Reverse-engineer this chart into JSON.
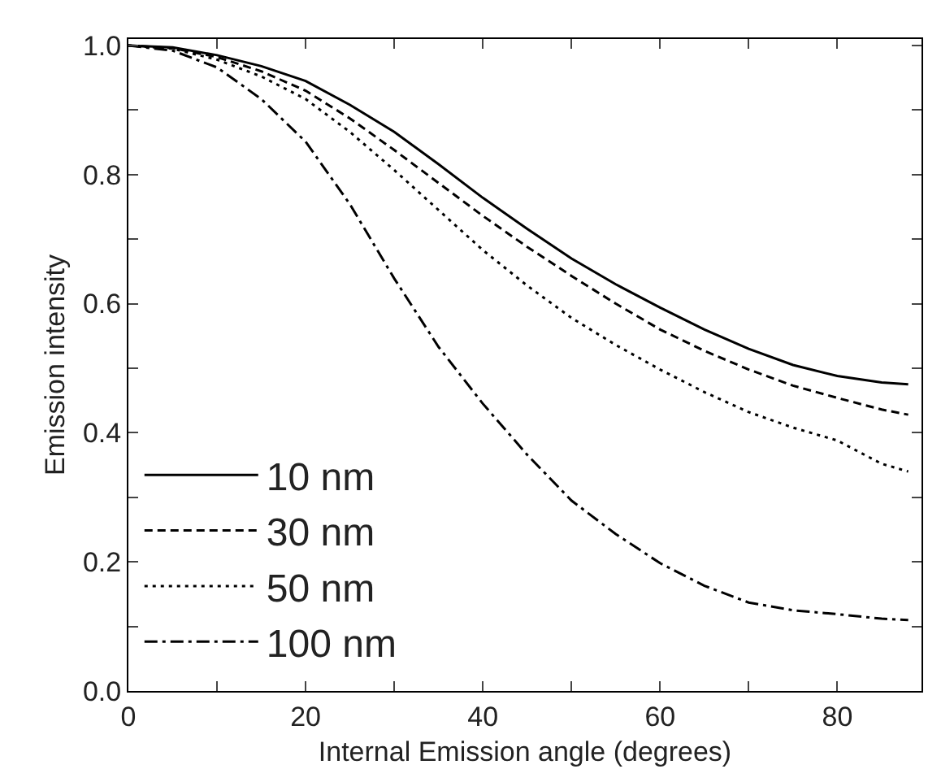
{
  "chart_data": {
    "type": "line",
    "xlabel": "Internal Emission angle (degrees)",
    "ylabel": "Emission intensity",
    "x": [
      0,
      5,
      10,
      15,
      20,
      25,
      30,
      35,
      40,
      45,
      50,
      55,
      60,
      65,
      70,
      75,
      80,
      85,
      88
    ],
    "series": [
      {
        "name": "10 nm",
        "color": "#000000",
        "line_style": "solid",
        "values": [
          1,
          0.997,
          0.985,
          0.968,
          0.945,
          0.908,
          0.866,
          0.816,
          0.764,
          0.716,
          0.67,
          0.63,
          0.594,
          0.56,
          0.53,
          0.505,
          0.488,
          0.478,
          0.475
        ]
      },
      {
        "name": "30 nm",
        "color": "#000000",
        "line_style": "dashed",
        "values": [
          1,
          0.996,
          0.982,
          0.96,
          0.93,
          0.887,
          0.838,
          0.787,
          0.736,
          0.688,
          0.643,
          0.6,
          0.56,
          0.527,
          0.498,
          0.473,
          0.454,
          0.436,
          0.428
        ]
      },
      {
        "name": "50 nm",
        "color": "#000000",
        "line_style": "dotted",
        "values": [
          1,
          0.995,
          0.978,
          0.952,
          0.917,
          0.866,
          0.807,
          0.745,
          0.683,
          0.628,
          0.578,
          0.536,
          0.498,
          0.463,
          0.432,
          0.408,
          0.388,
          0.352,
          0.34
        ]
      },
      {
        "name": "100 nm",
        "color": "#000000",
        "line_style": "dashdot",
        "values": [
          1,
          0.992,
          0.966,
          0.917,
          0.851,
          0.754,
          0.639,
          0.533,
          0.445,
          0.366,
          0.295,
          0.243,
          0.198,
          0.163,
          0.137,
          0.125,
          0.119,
          0.112,
          0.11
        ]
      }
    ],
    "xlim": [
      0,
      89.5
    ],
    "xticks": [
      0,
      {
        "value": 10,
        "label": null
      },
      20,
      {
        "value": 30,
        "label": null
      },
      40,
      {
        "value": 50,
        "label": null
      },
      60,
      {
        "value": 70,
        "label": null
      },
      80
    ],
    "ylim": [
      0,
      1.01
    ],
    "yticks": [
      {
        "value": 0,
        "label": "0.0"
      },
      {
        "value": 0.1,
        "label": null
      },
      {
        "value": 0.2,
        "label": "0.2"
      },
      {
        "value": 0.3,
        "label": null
      },
      {
        "value": 0.4,
        "label": "0.4"
      },
      {
        "value": 0.5,
        "label": null
      },
      {
        "value": 0.6,
        "label": "0.6"
      },
      {
        "value": 0.7,
        "label": null
      },
      {
        "value": 0.8,
        "label": "0.8"
      },
      {
        "value": 0.9,
        "label": null
      },
      {
        "value": 1.0,
        "label": "1.0"
      }
    ],
    "grid": false,
    "legend": "bottom left",
    "marker": "none"
  }
}
